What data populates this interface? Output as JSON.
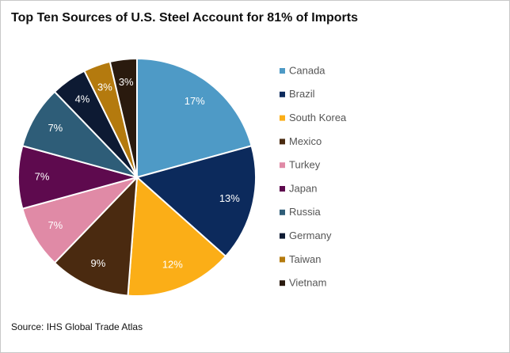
{
  "chart_data": {
    "type": "pie",
    "title": "Top Ten Sources of U.S. Steel Account for 81% of Imports",
    "source": "Source: IHS Global Trade Atlas",
    "categories": [
      "Canada",
      "Brazil",
      "South Korea",
      "Mexico",
      "Turkey",
      "Japan",
      "Russia",
      "Germany",
      "Taiwan",
      "Vietnam"
    ],
    "values": [
      17,
      13,
      12,
      9,
      7,
      7,
      7,
      4,
      3,
      3
    ],
    "value_labels": [
      "17%",
      "13%",
      "12%",
      "9%",
      "7%",
      "7%",
      "7%",
      "4%",
      "3%",
      "3%"
    ],
    "colors": [
      "#4e9ac6",
      "#0c2a5c",
      "#fbae17",
      "#4a2a10",
      "#e08aa6",
      "#5e0a4e",
      "#2e5d78",
      "#0d1a33",
      "#b47a0e",
      "#2a1a0e"
    ],
    "legend": "right"
  }
}
